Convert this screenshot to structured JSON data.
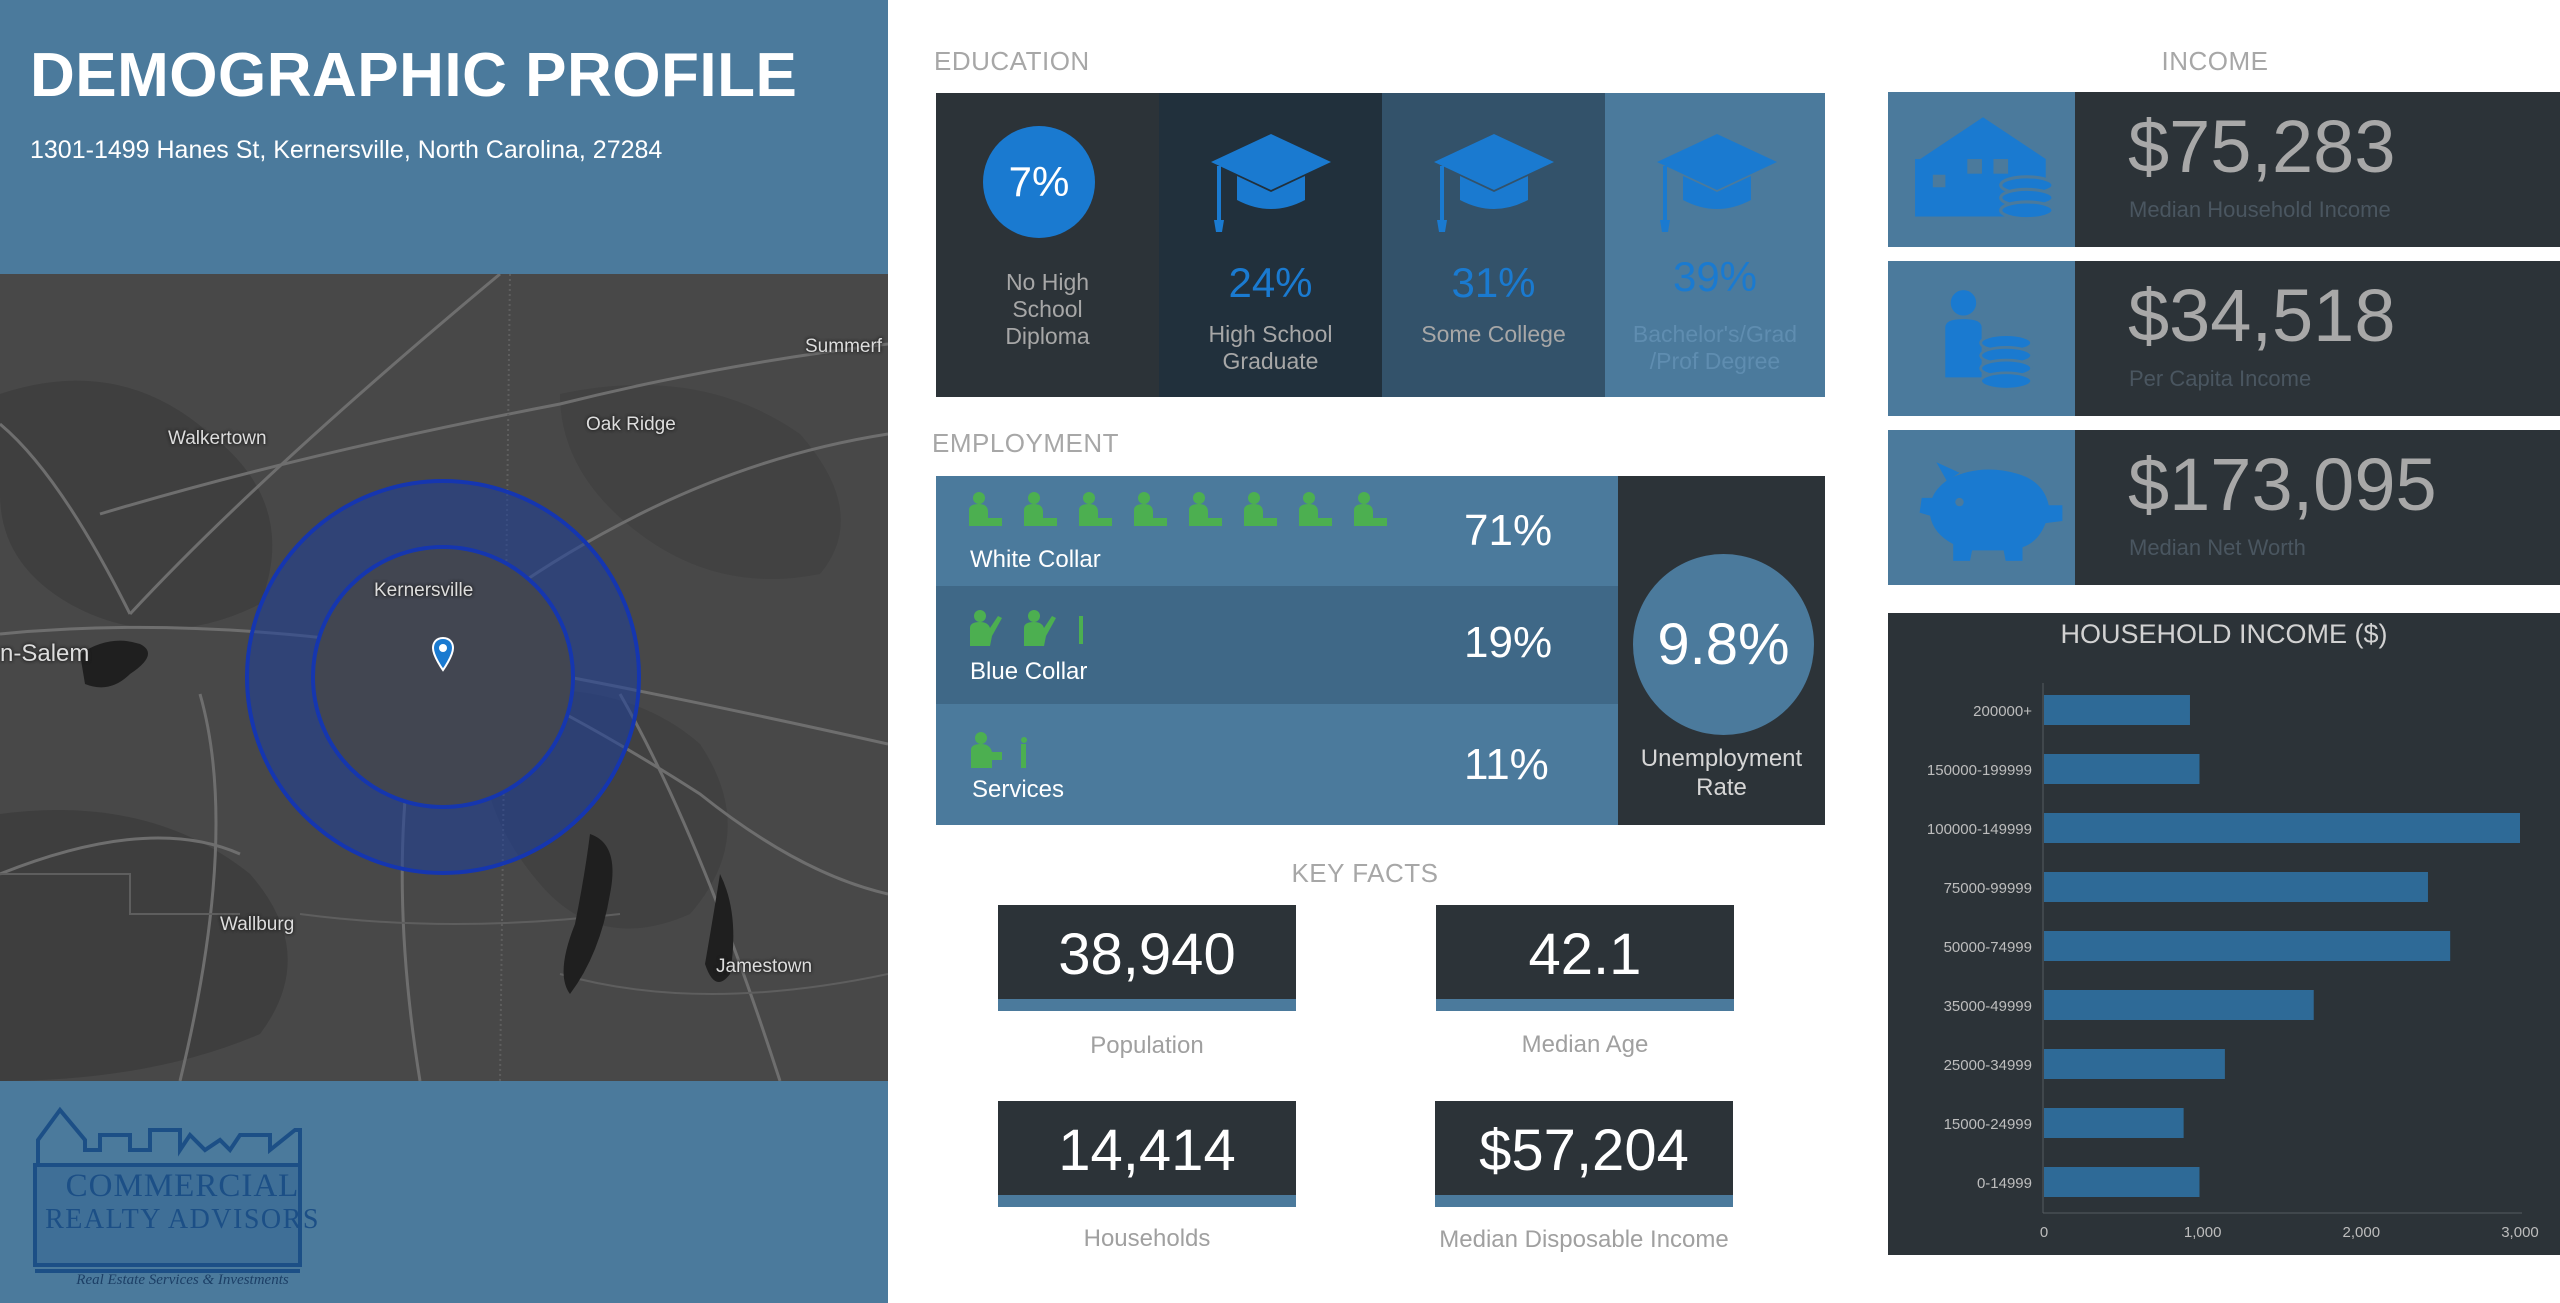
{
  "header": {
    "title": "DEMOGRAPHIC PROFILE",
    "address": "1301-1499 Hanes St, Kernersville, North Carolina, 27284"
  },
  "map": {
    "labels": {
      "summerfield": "Summerf",
      "walkertown": "Walkertown",
      "oak_ridge": "Oak Ridge",
      "kernersville": "Kernersville",
      "winston_salem": "n-Salem",
      "wallburg": "Wallburg",
      "jamestown": "Jamestown"
    },
    "marker_icon": "map-pin-icon"
  },
  "logo": {
    "line1": "COMMERCIAL",
    "line2": "REALTY ADVISORS",
    "tagline": "Real Estate Services & Investments"
  },
  "education": {
    "title": "EDUCATION",
    "items": [
      {
        "pct": "7%",
        "label": "No High School Diploma",
        "icon": "circle-percent"
      },
      {
        "pct": "24%",
        "label": "High School Graduate",
        "icon": "graduation-cap-icon"
      },
      {
        "pct": "31%",
        "label": "Some College",
        "icon": "graduation-cap-icon"
      },
      {
        "pct": "39%",
        "label": "Bachelor's/Grad /Prof Degree",
        "icon": "graduation-cap-icon"
      }
    ]
  },
  "employment": {
    "title": "EMPLOYMENT",
    "rows": [
      {
        "label": "White Collar",
        "pct": "71%",
        "icon": "office-worker-icon"
      },
      {
        "label": "Blue Collar",
        "pct": "19%",
        "icon": "laborer-icon"
      },
      {
        "label": "Services",
        "pct": "11%",
        "icon": "service-worker-icon"
      }
    ],
    "unemployment": {
      "value": "9.8%",
      "label": "Unemployment Rate"
    }
  },
  "key_facts": {
    "title": "KEY FACTS",
    "items": [
      {
        "value": "38,940",
        "label": "Population"
      },
      {
        "value": "42.1",
        "label": "Median Age"
      },
      {
        "value": "14,414",
        "label": "Households"
      },
      {
        "value": "$57,204",
        "label": "Median Disposable Income"
      }
    ]
  },
  "income": {
    "title": "INCOME",
    "items": [
      {
        "value": "$75,283",
        "label": "Median Household Income",
        "icon": "house-coins-icon"
      },
      {
        "value": "$34,518",
        "label": "Per Capita Income",
        "icon": "person-coins-icon"
      },
      {
        "value": "$173,095",
        "label": "Median Net Worth",
        "icon": "piggy-bank-icon"
      }
    ]
  },
  "colors": {
    "panel_blue": "#4b7a9c",
    "dark_slate": "#2c3338",
    "accent_blue": "#1a7ad0",
    "worker_green": "#4caf50",
    "bar_blue": "#2e6a97"
  },
  "chart_data": {
    "type": "bar",
    "orientation": "horizontal",
    "title": "HOUSEHOLD INCOME ($)",
    "categories": [
      "200000+",
      "150000-199999",
      "100000-149999",
      "75000-99999",
      "50000-74999",
      "35000-49999",
      "25000-34999",
      "15000-24999",
      "0-14999"
    ],
    "values": [
      920,
      980,
      3000,
      2420,
      2560,
      1700,
      1140,
      880,
      980
    ],
    "xlim": [
      0,
      3000
    ],
    "xticks": [
      "0",
      "1,000",
      "2,000",
      "3,000"
    ],
    "grid": false
  }
}
